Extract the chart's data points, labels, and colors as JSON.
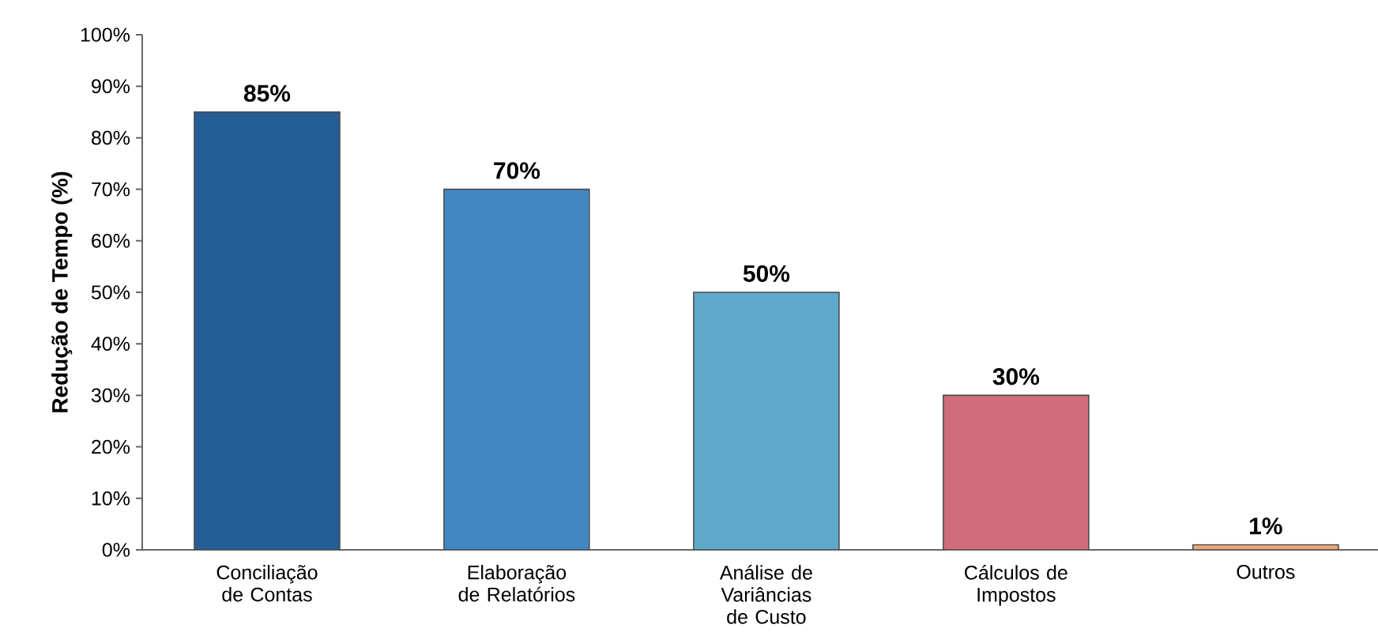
{
  "chart_data": {
    "type": "bar",
    "ylabel": "**Redução de Tempo (%)**",
    "categories": [
      "Conciliação de Contas",
      "Elaboração de Relatórios",
      "Análise de Variâncias de Custo",
      "Cálculos de Impostos",
      "Outros"
    ],
    "values": [
      85,
      70,
      50,
      30,
      1
    ],
    "colors": [
      "#255e96",
      "#4287c3",
      "#5ea9cb",
      "#cf6e7a",
      "#e9a87a"
    ],
    "value_labels": [
      "85%",
      "70%",
      "50%",
      "30%",
      "1%"
    ],
    "ylim": [
      0,
      100
    ],
    "yticks": [
      {
        "value": 0,
        "label": "0%"
      },
      {
        "value": 10,
        "label": "10%"
      },
      {
        "value": 20,
        "label": "20%"
      },
      {
        "value": 30,
        "label": "30%"
      },
      {
        "value": 40,
        "label": "40%"
      },
      {
        "value": 50,
        "label": "50%"
      },
      {
        "value": 60,
        "label": "60%"
      },
      {
        "value": 70,
        "label": "70%"
      },
      {
        "value": 80,
        "label": "80%"
      },
      {
        "value": 90,
        "label": "90%"
      },
      {
        "value": 100,
        "label": "100%"
      }
    ],
    "grid": false
  }
}
